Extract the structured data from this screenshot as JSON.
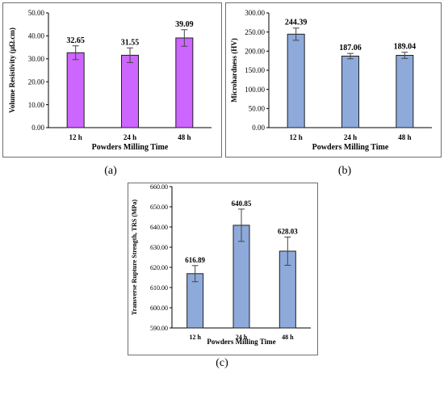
{
  "chart_data": [
    {
      "type": "bar",
      "panel_label": "(a)",
      "categories": [
        "12 h",
        "24 h",
        "48 h"
      ],
      "values": [
        32.65,
        31.55,
        39.09
      ],
      "errors": [
        3.0,
        3.2,
        3.6
      ],
      "data_labels": [
        "32.65",
        "31.55",
        "39.09"
      ],
      "xlabel": "Powders Milling Time",
      "ylabel": "Volume Resistivity (μΩ.cm)",
      "ylim": [
        0,
        50
      ],
      "yticks": [
        "0.00",
        "10.00",
        "20.00",
        "30.00",
        "40.00",
        "50.00"
      ],
      "bar_color": "#cc66ff",
      "legend": "none",
      "grid": false
    },
    {
      "type": "bar",
      "panel_label": "(b)",
      "categories": [
        "12 h",
        "24 h",
        "48 h"
      ],
      "values": [
        244.39,
        187.06,
        189.04
      ],
      "errors": [
        16,
        7,
        8
      ],
      "data_labels": [
        "244.39",
        "187.06",
        "189.04"
      ],
      "xlabel": "Powders Milling Time",
      "ylabel": "Microhardness (HV)",
      "ylim": [
        0,
        300
      ],
      "yticks": [
        "0.00",
        "50.00",
        "100.00",
        "150.00",
        "200.00",
        "250.00",
        "300.00"
      ],
      "bar_color": "#8eaadb",
      "legend": "none",
      "grid": false
    },
    {
      "type": "bar",
      "panel_label": "(c)",
      "categories": [
        "12 h",
        "24 h",
        "48 h"
      ],
      "values": [
        616.89,
        640.85,
        628.03
      ],
      "errors": [
        4,
        8,
        7
      ],
      "data_labels": [
        "616.89",
        "640.85",
        "628.03"
      ],
      "xlabel": "Powders Milling Time",
      "ylabel": "Transverse Rupture Strength, TRS (MPa)",
      "ylim": [
        590,
        660
      ],
      "yticks": [
        "590.00",
        "600.00",
        "610.00",
        "620.00",
        "630.00",
        "640.00",
        "650.00",
        "660.00"
      ],
      "bar_color": "#8eaadb",
      "legend": "none",
      "grid": false
    }
  ]
}
